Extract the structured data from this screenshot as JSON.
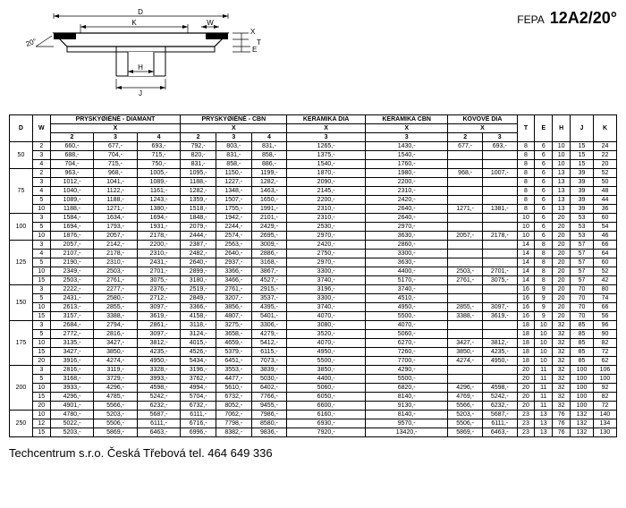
{
  "title": {
    "fepa": "FEPA",
    "model": "12A2/20°"
  },
  "angle_label": "20°",
  "dim_labels": {
    "D": "D",
    "K": "K",
    "W": "W",
    "X": "X",
    "H": "H",
    "J": "J",
    "E": "E",
    "T": "T"
  },
  "headers": {
    "D": "D",
    "W": "W",
    "g1": "PRYSKYØIÈNÉ - DIAMANT",
    "g2": "PRYSKYØIÈNÉ - CBN",
    "g3": "KERAMIKA DIA",
    "g4": "KERAMIKA CBN",
    "g5": "KOVOVÉ DIA",
    "T": "T",
    "E": "E",
    "H": "H",
    "J": "J",
    "K": "K",
    "X": "X",
    "c2": "2",
    "c3": "3",
    "c4": "4"
  },
  "rows": [
    {
      "D": "50",
      "W": "2",
      "pd2": "660,-",
      "pd3": "677,-",
      "pd4": "693,-",
      "pc2": "792,-",
      "pc3": "803,-",
      "pc4": "831,-",
      "kd": "1265,-",
      "kc": "1430,-",
      "kv2": "677,-",
      "kv3": "693,-",
      "T": "8",
      "E": "6",
      "H": "10",
      "J": "15",
      "K": "24"
    },
    {
      "D": "",
      "W": "3",
      "pd2": "688,-",
      "pd3": "704,-",
      "pd4": "715,-",
      "pc2": "820,-",
      "pc3": "831,-",
      "pc4": "858,-",
      "kd": "1375,-",
      "kc": "1540,-",
      "kv2": "",
      "kv3": "",
      "T": "8",
      "E": "6",
      "H": "10",
      "J": "15",
      "K": "22"
    },
    {
      "D": "",
      "W": "4",
      "pd2": "704,-",
      "pd3": "715,-",
      "pd4": "750,-",
      "pc2": "831,-",
      "pc3": "858,-",
      "pc4": "886,-",
      "kd": "1540,-",
      "kc": "1760,-",
      "kv2": "",
      "kv3": "",
      "T": "8",
      "E": "6",
      "H": "10",
      "J": "15",
      "K": "20"
    },
    {
      "D": "75",
      "W": "2",
      "pd2": "963,-",
      "pd3": "968,-",
      "pd4": "1005,-",
      "pc2": "1095,-",
      "pc3": "1150,-",
      "pc4": "1199,-",
      "kd": "1870,-",
      "kc": "1980,-",
      "kv2": "968,-",
      "kv3": "1007,-",
      "T": "8",
      "E": "6",
      "H": "13",
      "J": "39",
      "K": "52"
    },
    {
      "D": "",
      "W": "3",
      "pd2": "1012,-",
      "pd3": "1041,-",
      "pd4": "1089,-",
      "pc2": "1188,-",
      "pc3": "1227,-",
      "pc4": "1282,-",
      "kd": "2090,-",
      "kc": "2200,-",
      "kv2": "",
      "kv3": "",
      "T": "8",
      "E": "6",
      "H": "13",
      "J": "39",
      "K": "50"
    },
    {
      "D": "",
      "W": "4",
      "pd2": "1040,-",
      "pd3": "1122,-",
      "pd4": "1161,-",
      "pc2": "1282,-",
      "pc3": "1348,-",
      "pc4": "1463,-",
      "kd": "2145,-",
      "kc": "2310,-",
      "kv2": "",
      "kv3": "",
      "T": "8",
      "E": "6",
      "H": "13",
      "J": "39",
      "K": "48"
    },
    {
      "D": "",
      "W": "5",
      "pd2": "1089,-",
      "pd3": "1188,-",
      "pd4": "1243,-",
      "pc2": "1359,-",
      "pc3": "1507,-",
      "pc4": "1650,-",
      "kd": "2200,-",
      "kc": "2420,-",
      "kv2": "",
      "kv3": "",
      "T": "8",
      "E": "6",
      "H": "13",
      "J": "39",
      "K": "44"
    },
    {
      "D": "",
      "W": "10",
      "pd2": "1188,-",
      "pd3": "1271,-",
      "pd4": "1380,-",
      "pc2": "1518,-",
      "pc3": "1755,-",
      "pc4": "1991,-",
      "kd": "2310,-",
      "kc": "2640,-",
      "kv2": "1271,-",
      "kv3": "1381,-",
      "T": "8",
      "E": "6",
      "H": "13",
      "J": "39",
      "K": "36"
    },
    {
      "D": "100",
      "W": "3",
      "pd2": "1584,-",
      "pd3": "1634,-",
      "pd4": "1694,-",
      "pc2": "1848,-",
      "pc3": "1942,-",
      "pc4": "2101,-",
      "kd": "2310,-",
      "kc": "2640,-",
      "kv2": "",
      "kv3": "",
      "T": "10",
      "E": "6",
      "H": "20",
      "J": "53",
      "K": "60"
    },
    {
      "D": "",
      "W": "5",
      "pd2": "1694,-",
      "pd3": "1793,-",
      "pd4": "1931,-",
      "pc2": "2079,-",
      "pc3": "2244,-",
      "pc4": "2429,-",
      "kd": "2530,-",
      "kc": "2970,-",
      "kv2": "",
      "kv3": "",
      "T": "10",
      "E": "6",
      "H": "20",
      "J": "53",
      "K": "54"
    },
    {
      "D": "",
      "W": "10",
      "pd2": "1876,-",
      "pd3": "2057,-",
      "pd4": "2178,-",
      "pc2": "2444,-",
      "pc3": "2574,-",
      "pc4": "2695,-",
      "kd": "2970,-",
      "kc": "3630,-",
      "kv2": "2057,-",
      "kv3": "2178,-",
      "T": "10",
      "E": "6",
      "H": "20",
      "J": "53",
      "K": "46"
    },
    {
      "D": "125",
      "W": "3",
      "pd2": "2057,-",
      "pd3": "2142,-",
      "pd4": "2200,-",
      "pc2": "2387,-",
      "pc3": "2563,-",
      "pc4": "3009,-",
      "kd": "2420,-",
      "kc": "2860,-",
      "kv2": "",
      "kv3": "",
      "T": "14",
      "E": "8",
      "H": "20",
      "J": "57",
      "K": "66"
    },
    {
      "D": "",
      "W": "4",
      "pd2": "2107,-",
      "pd3": "2178,-",
      "pd4": "2310,-",
      "pc2": "2482,-",
      "pc3": "2640,-",
      "pc4": "2886,-",
      "kd": "2750,-",
      "kc": "3300,-",
      "kv2": "",
      "kv3": "",
      "T": "14",
      "E": "8",
      "H": "20",
      "J": "57",
      "K": "64"
    },
    {
      "D": "",
      "W": "5",
      "pd2": "2190,-",
      "pd3": "2310,-",
      "pd4": "2431,-",
      "pc2": "2640,-",
      "pc3": "2937,-",
      "pc4": "3168,-",
      "kd": "2970,-",
      "kc": "3630,-",
      "kv2": "",
      "kv3": "",
      "T": "14",
      "E": "8",
      "H": "20",
      "J": "57",
      "K": "60"
    },
    {
      "D": "",
      "W": "10",
      "pd2": "2349,-",
      "pd3": "2503,-",
      "pd4": "2701,-",
      "pc2": "2899,-",
      "pc3": "3366,-",
      "pc4": "3867,-",
      "kd": "3300,-",
      "kc": "4400,-",
      "kv2": "2503,-",
      "kv3": "2701,-",
      "T": "14",
      "E": "8",
      "H": "20",
      "J": "57",
      "K": "52"
    },
    {
      "D": "",
      "W": "15",
      "pd2": "2503,-",
      "pd3": "2761,-",
      "pd4": "3075,-",
      "pc2": "3180,-",
      "pc3": "3466,-",
      "pc4": "4527,-",
      "kd": "3740,-",
      "kc": "5170,-",
      "kv2": "2761,-",
      "kv3": "3075,-",
      "T": "14",
      "E": "8",
      "H": "20",
      "J": "57",
      "K": "42"
    },
    {
      "D": "150",
      "W": "3",
      "pd2": "2222,-",
      "pd3": "2277,-",
      "pd4": "2376,-",
      "pc2": "2519,-",
      "pc3": "2761,-",
      "pc4": "2915,-",
      "kd": "3196,-",
      "kc": "3740,-",
      "kv2": "",
      "kv3": "",
      "T": "16",
      "E": "9",
      "H": "20",
      "J": "70",
      "K": "80"
    },
    {
      "D": "",
      "W": "5",
      "pd2": "2431,-",
      "pd3": "2580,-",
      "pd4": "2712,-",
      "pc2": "2849,-",
      "pc3": "3207,-",
      "pc4": "3537,-",
      "kd": "3300,-",
      "kc": "4510,-",
      "kv2": "",
      "kv3": "",
      "T": "16",
      "E": "9",
      "H": "20",
      "J": "70",
      "K": "74"
    },
    {
      "D": "",
      "W": "10",
      "pd2": "2613,-",
      "pd3": "2855,-",
      "pd4": "3097,-",
      "pc2": "3366,-",
      "pc3": "3856,-",
      "pc4": "4395,-",
      "kd": "3740,-",
      "kc": "4950,-",
      "kv2": "2855,-",
      "kv3": "3097,-",
      "T": "16",
      "E": "9",
      "H": "20",
      "J": "70",
      "K": "66"
    },
    {
      "D": "",
      "W": "15",
      "pd2": "3157,-",
      "pd3": "3388,-",
      "pd4": "3619,-",
      "pc2": "4158,-",
      "pc3": "4807,-",
      "pc4": "5401,-",
      "kd": "4070,-",
      "kc": "5500,-",
      "kv2": "3388,-",
      "kv3": "3619,-",
      "T": "16",
      "E": "9",
      "H": "20",
      "J": "70",
      "K": "56"
    },
    {
      "D": "175",
      "W": "3",
      "pd2": "2684,-",
      "pd3": "2794,-",
      "pd4": "2861,-",
      "pc2": "3118,-",
      "pc3": "3275,-",
      "pc4": "3306,-",
      "kd": "3080,-",
      "kc": "4070,-",
      "kv2": "",
      "kv3": "",
      "T": "18",
      "E": "10",
      "H": "32",
      "J": "85",
      "K": "96"
    },
    {
      "D": "",
      "W": "5",
      "pd2": "2772,-",
      "pd3": "2816,-",
      "pd4": "3097,-",
      "pc2": "3124,-",
      "pc3": "3658,-",
      "pc4": "4279,-",
      "kd": "3520,-",
      "kc": "5060,-",
      "kv2": "",
      "kv3": "",
      "T": "18",
      "E": "10",
      "H": "32",
      "J": "85",
      "K": "90"
    },
    {
      "D": "",
      "W": "10",
      "pd2": "3135,-",
      "pd3": "3427,-",
      "pd4": "3812,-",
      "pc2": "4015,-",
      "pc3": "4659,-",
      "pc4": "5412,-",
      "kd": "4070,-",
      "kc": "6270,-",
      "kv2": "3427,-",
      "kv3": "3812,-",
      "T": "18",
      "E": "10",
      "H": "32",
      "J": "85",
      "K": "82"
    },
    {
      "D": "",
      "W": "15",
      "pd2": "3427,-",
      "pd3": "3850,-",
      "pd4": "4235,-",
      "pc2": "4526,-",
      "pc3": "5379,-",
      "pc4": "6115,-",
      "kd": "4950,-",
      "kc": "7260,-",
      "kv2": "3850,-",
      "kv3": "4235,-",
      "T": "18",
      "E": "10",
      "H": "32",
      "J": "85",
      "K": "72"
    },
    {
      "D": "",
      "W": "20",
      "pd2": "3916,-",
      "pd3": "4274,-",
      "pd4": "4950,-",
      "pc2": "5434,-",
      "pc3": "6451,-",
      "pc4": "7073,-",
      "kd": "5500,-",
      "kc": "7700,-",
      "kv2": "4274,-",
      "kv3": "4950,-",
      "T": "18",
      "E": "10",
      "H": "32",
      "J": "85",
      "K": "62"
    },
    {
      "D": "200",
      "W": "3",
      "pd2": "2816,-",
      "pd3": "3119,-",
      "pd4": "3328,-",
      "pc2": "3196,-",
      "pc3": "3553,-",
      "pc4": "3839,-",
      "kd": "3850,-",
      "kc": "4290,-",
      "kv2": "",
      "kv3": "",
      "T": "20",
      "E": "11",
      "H": "32",
      "J": "100",
      "K": "106"
    },
    {
      "D": "",
      "W": "5",
      "pd2": "3168,-",
      "pd3": "3729,-",
      "pd4": "3993,-",
      "pc2": "3762,-",
      "pc3": "4477,-",
      "pc4": "5030,-",
      "kd": "4400,-",
      "kc": "5500,-",
      "kv2": "",
      "kv3": "",
      "T": "20",
      "E": "11",
      "H": "32",
      "J": "100",
      "K": "100"
    },
    {
      "D": "",
      "W": "10",
      "pd2": "3933,-",
      "pd3": "4296,-",
      "pd4": "4598,-",
      "pc2": "4994,-",
      "pc3": "5610,-",
      "pc4": "6402,-",
      "kd": "5060,-",
      "kc": "6820,-",
      "kv2": "4296,-",
      "kv3": "4598,-",
      "T": "20",
      "E": "11",
      "H": "32",
      "J": "100",
      "K": "92"
    },
    {
      "D": "",
      "W": "15",
      "pd2": "4296,-",
      "pd3": "4785,-",
      "pd4": "5242,-",
      "pc2": "5704,-",
      "pc3": "6732,-",
      "pc4": "7766,-",
      "kd": "6050,-",
      "kc": "8140,-",
      "kv2": "4769,-",
      "kv3": "5242,-",
      "T": "20",
      "E": "11",
      "H": "32",
      "J": "100",
      "K": "82"
    },
    {
      "D": "",
      "W": "20",
      "pd2": "4901,-",
      "pd3": "5566,-",
      "pd4": "6232,-",
      "pc2": "6732,-",
      "pc3": "8052,-",
      "pc4": "9455,-",
      "kd": "6600,-",
      "kc": "9130,-",
      "kv2": "5566,-",
      "kv3": "6232,-",
      "T": "20",
      "E": "11",
      "H": "32",
      "J": "100",
      "K": "72"
    },
    {
      "D": "250",
      "W": "10",
      "pd2": "4780,-",
      "pd3": "5203,-",
      "pd4": "5687,-",
      "pc2": "6111,-",
      "pc3": "7062,-",
      "pc4": "7986,-",
      "kd": "6160,-",
      "kc": "8140,-",
      "kv2": "5203,-",
      "kv3": "5687,-",
      "T": "23",
      "E": "13",
      "H": "76",
      "J": "132",
      "K": "140"
    },
    {
      "D": "",
      "W": "12",
      "pd2": "5022,-",
      "pd3": "5506,-",
      "pd4": "6111,-",
      "pc2": "6716,-",
      "pc3": "7798,-",
      "pc4": "8580,-",
      "kd": "6930,-",
      "kc": "9570,-",
      "kv2": "5506,-",
      "kv3": "6111,-",
      "T": "23",
      "E": "13",
      "H": "76",
      "J": "132",
      "K": "134"
    },
    {
      "D": "",
      "W": "15",
      "pd2": "5203,-",
      "pd3": "5869,-",
      "pd4": "6463,-",
      "pc2": "6996,-",
      "pc3": "8382,-",
      "pc4": "9836,-",
      "kd": "7920,-",
      "kc": "13420,-",
      "kv2": "5869,-",
      "kv3": "6463,-",
      "T": "23",
      "E": "13",
      "H": "76",
      "J": "132",
      "K": "130"
    }
  ],
  "footer": "Techcentrum s.r.o. Česká Třebová tel. 464 649 336"
}
